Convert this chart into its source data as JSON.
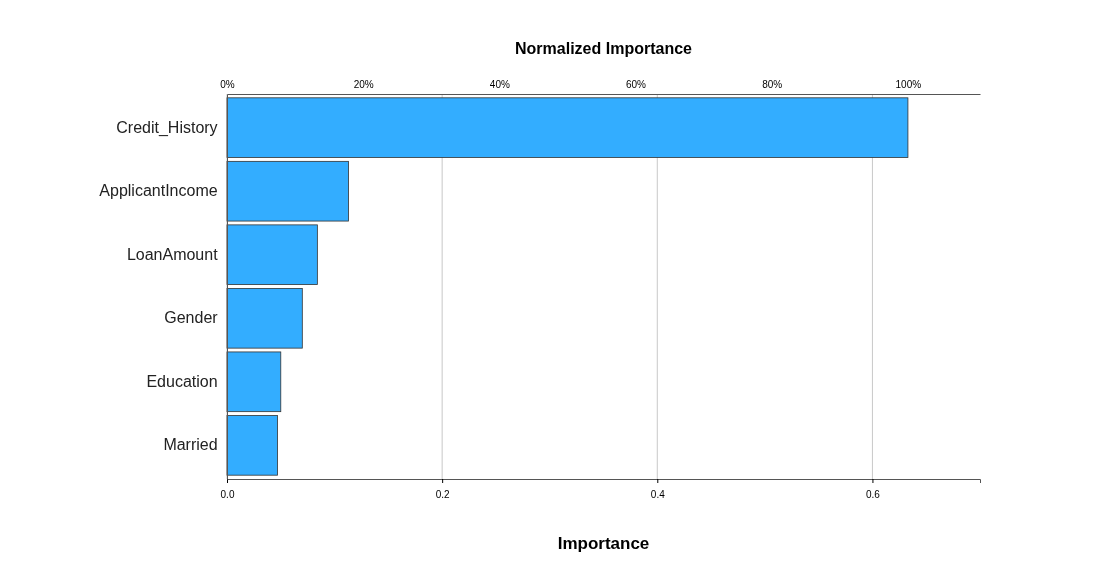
{
  "chart_data": {
    "type": "bar",
    "orientation": "horizontal",
    "x2label": "Normalized Importance",
    "xlabel": "Importance",
    "categories": [
      "Credit_History",
      "ApplicantIncome",
      "LoanAmount",
      "Gender",
      "Education",
      "Married"
    ],
    "values": [
      0.633,
      0.113,
      0.084,
      0.07,
      0.05,
      0.047
    ],
    "color": "#33adff",
    "xlim": [
      0,
      0.7
    ],
    "xticks": [
      {
        "value": 0,
        "label": "0.0"
      },
      0.2,
      0.4,
      0.6
    ],
    "x2lim": [
      0,
      110.6
    ],
    "x2ticks": [
      {
        "value": 0,
        "label": "0%"
      },
      {
        "value": 20,
        "label": "20%"
      },
      {
        "value": 40,
        "label": "40%"
      },
      {
        "value": 60,
        "label": "60%"
      },
      {
        "value": 80,
        "label": "80%"
      },
      {
        "value": 100,
        "label": "100%"
      }
    ],
    "grid": "x"
  }
}
